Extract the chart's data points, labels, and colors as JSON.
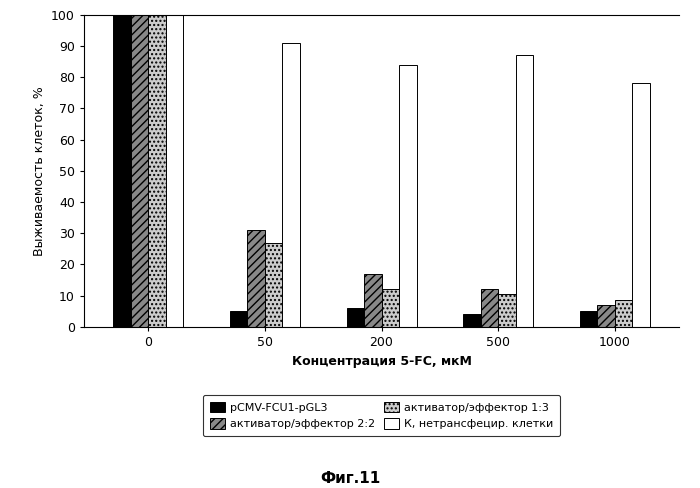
{
  "categories": [
    "0",
    "50",
    "200",
    "500",
    "1000"
  ],
  "series": {
    "pCMV": [
      100,
      5,
      6,
      4,
      5
    ],
    "akt22": [
      100,
      31,
      17,
      12,
      7
    ],
    "akt13": [
      100,
      27,
      12,
      10.5,
      8.5
    ],
    "control": [
      100,
      91,
      84,
      87,
      78
    ]
  },
  "series_labels": [
    "pCMV-FCU1-pGL3",
    "активатор/эффектор 2:2",
    "активатор/эффектор 1:3",
    "К, нетрансфецир. клетки"
  ],
  "facecolors": [
    "#000000",
    "#888888",
    "#cccccc",
    "#ffffff"
  ],
  "hatches": [
    "",
    "////",
    "....",
    ""
  ],
  "ylabel": "Выживаемость клеток, %",
  "xlabel": "Концентрация 5-FC, мкМ",
  "caption": "Фиг.11",
  "ylim": [
    0,
    100
  ],
  "yticks": [
    0,
    10,
    20,
    30,
    40,
    50,
    60,
    70,
    80,
    90,
    100
  ],
  "bar_width": 0.15,
  "fig_width": 7.0,
  "fig_height": 4.88,
  "dpi": 100,
  "edgecolor": "#000000",
  "legend_fontsize": 8,
  "axis_label_fontsize": 9,
  "tick_fontsize": 9,
  "caption_fontsize": 11
}
